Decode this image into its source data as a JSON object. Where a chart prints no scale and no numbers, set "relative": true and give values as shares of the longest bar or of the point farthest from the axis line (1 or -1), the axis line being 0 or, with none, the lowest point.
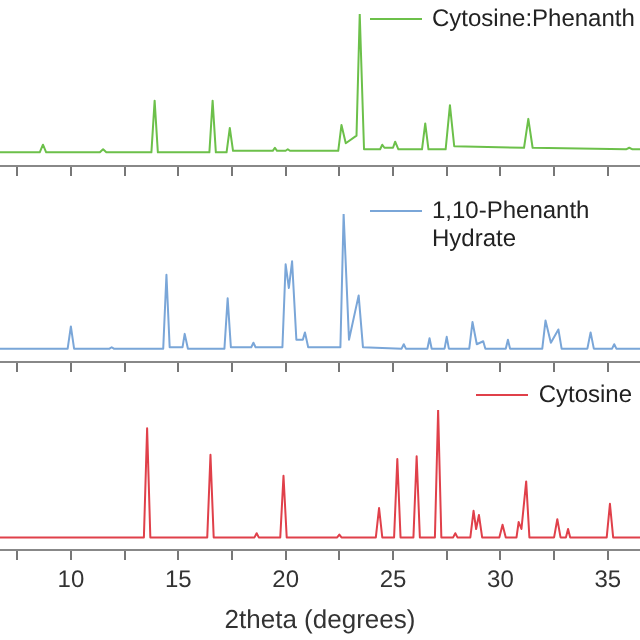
{
  "chart_data": [
    {
      "type": "line",
      "relative": true,
      "tick_labels": false,
      "legend": "top right",
      "grid": false,
      "marker": "none",
      "xlim": [
        6.7,
        36.5
      ],
      "xticks": [
        {
          "value": 7.5,
          "label": null
        },
        {
          "value": 10,
          "label": null
        },
        {
          "value": 12.5,
          "label": null
        },
        {
          "value": 15,
          "label": null
        },
        {
          "value": 17.5,
          "label": null
        },
        {
          "value": 20,
          "label": null
        },
        {
          "value": 22.5,
          "label": null
        },
        {
          "value": 25,
          "label": null
        },
        {
          "value": 27.5,
          "label": null
        },
        {
          "value": 30,
          "label": null
        },
        {
          "value": 32.5,
          "label": null
        },
        {
          "value": 35,
          "label": null
        }
      ],
      "x": [
        6.7,
        8.55,
        8.7,
        8.85,
        11.35,
        11.5,
        11.65,
        13.75,
        13.9,
        14.05,
        16.45,
        16.6,
        16.75,
        17.25,
        17.4,
        17.55,
        19.4,
        19.5,
        19.6,
        20.0,
        20.1,
        20.2,
        22.45,
        22.6,
        22.8,
        23.3,
        23.45,
        23.65,
        24.4,
        24.5,
        24.6,
        25.0,
        25.1,
        25.25,
        26.35,
        26.5,
        26.65,
        27.45,
        27.65,
        27.85,
        31.1,
        31.3,
        31.5,
        35.85,
        36.0,
        36.15,
        36.5
      ],
      "series": [
        {
          "name": "Cytosine:Phenanth",
          "color": "#6cc04a",
          "values": [
            0.09,
            0.09,
            0.14,
            0.09,
            0.09,
            0.11,
            0.09,
            0.09,
            0.43,
            0.09,
            0.09,
            0.43,
            0.09,
            0.09,
            0.25,
            0.1,
            0.1,
            0.12,
            0.1,
            0.1,
            0.11,
            0.1,
            0.1,
            0.27,
            0.15,
            0.2,
            1,
            0.11,
            0.11,
            0.14,
            0.12,
            0.12,
            0.16,
            0.11,
            0.11,
            0.28,
            0.11,
            0.11,
            0.4,
            0.13,
            0.12,
            0.31,
            0.12,
            0.11,
            0.12,
            0.11,
            0.11
          ]
        }
      ]
    },
    {
      "type": "line",
      "relative": true,
      "tick_labels": false,
      "legend": "top right",
      "grid": false,
      "marker": "none",
      "xlim": [
        6.7,
        36.5
      ],
      "xticks": [
        {
          "value": 7.5,
          "label": null
        },
        {
          "value": 10,
          "label": null
        },
        {
          "value": 12.5,
          "label": null
        },
        {
          "value": 15,
          "label": null
        },
        {
          "value": 17.5,
          "label": null
        },
        {
          "value": 20,
          "label": null
        },
        {
          "value": 22.5,
          "label": null
        },
        {
          "value": 25,
          "label": null
        },
        {
          "value": 27.5,
          "label": null
        },
        {
          "value": 30,
          "label": null
        },
        {
          "value": 32.5,
          "label": null
        },
        {
          "value": 35,
          "label": null
        }
      ],
      "x": [
        6.7,
        9.85,
        10.0,
        10.15,
        11.8,
        11.9,
        12.0,
        14.3,
        14.45,
        14.6,
        15.2,
        15.3,
        15.45,
        17.15,
        17.3,
        17.45,
        18.4,
        18.5,
        18.6,
        19.85,
        20.0,
        20.15,
        20.3,
        20.5,
        20.8,
        20.9,
        21.05,
        22.55,
        22.7,
        22.95,
        23.4,
        23.6,
        25.4,
        25.5,
        25.6,
        26.6,
        26.7,
        26.8,
        27.4,
        27.5,
        27.6,
        28.55,
        28.7,
        28.9,
        29.2,
        29.3,
        30.25,
        30.35,
        30.45,
        31.95,
        32.1,
        32.35,
        32.7,
        32.85,
        34.05,
        34.2,
        34.35,
        35.2,
        35.3,
        35.4,
        36.5
      ],
      "series": [
        {
          "name": "1,10-Phenanth Hydrate",
          "color": "#7aa6d8",
          "values": [
            0.09,
            0.09,
            0.24,
            0.09,
            0.09,
            0.1,
            0.09,
            0.09,
            0.59,
            0.1,
            0.1,
            0.19,
            0.09,
            0.09,
            0.43,
            0.1,
            0.1,
            0.13,
            0.1,
            0.1,
            0.66,
            0.5,
            0.68,
            0.15,
            0.15,
            0.2,
            0.1,
            0.1,
            1,
            0.15,
            0.45,
            0.1,
            0.09,
            0.12,
            0.09,
            0.09,
            0.16,
            0.09,
            0.09,
            0.17,
            0.09,
            0.09,
            0.27,
            0.12,
            0.14,
            0.09,
            0.09,
            0.15,
            0.09,
            0.09,
            0.28,
            0.13,
            0.22,
            0.09,
            0.09,
            0.2,
            0.09,
            0.09,
            0.12,
            0.09,
            0.09
          ]
        }
      ]
    },
    {
      "type": "line",
      "relative": true,
      "tick_labels": "x",
      "legend": "top right",
      "grid": false,
      "marker": "none",
      "xlabel": "2theta (degrees)",
      "xlim": [
        6.7,
        36.5
      ],
      "xticks": [
        {
          "value": 7.5,
          "label": null
        },
        10,
        {
          "value": 12.5,
          "label": null
        },
        15,
        {
          "value": 17.5,
          "label": null
        },
        20,
        {
          "value": 22.5,
          "label": null
        },
        25,
        {
          "value": 27.5,
          "label": null
        },
        30,
        {
          "value": 32.5,
          "label": null
        },
        35
      ],
      "x": [
        6.7,
        13.4,
        13.55,
        13.7,
        16.35,
        16.5,
        16.65,
        18.55,
        18.65,
        18.75,
        19.75,
        19.9,
        20.05,
        22.4,
        22.5,
        22.6,
        24.2,
        24.35,
        24.5,
        25.05,
        25.2,
        25.35,
        25.95,
        26.1,
        26.25,
        26.95,
        27.1,
        27.25,
        27.8,
        27.9,
        28.0,
        28.6,
        28.75,
        28.87,
        29.0,
        29.15,
        29.95,
        30.1,
        30.25,
        30.75,
        30.85,
        30.98,
        31.2,
        31.35,
        32.5,
        32.65,
        32.8,
        33.05,
        33.15,
        33.25,
        34.95,
        35.1,
        35.25,
        36.5
      ],
      "series": [
        {
          "name": "Cytosine",
          "color": "#e0404a",
          "values": [
            0.09,
            0.09,
            0.87,
            0.09,
            0.09,
            0.68,
            0.09,
            0.09,
            0.12,
            0.09,
            0.09,
            0.53,
            0.09,
            0.09,
            0.11,
            0.09,
            0.09,
            0.3,
            0.09,
            0.09,
            0.65,
            0.09,
            0.09,
            0.67,
            0.09,
            0.09,
            1,
            0.09,
            0.09,
            0.12,
            0.09,
            0.09,
            0.28,
            0.15,
            0.25,
            0.09,
            0.09,
            0.18,
            0.09,
            0.09,
            0.2,
            0.15,
            0.49,
            0.09,
            0.09,
            0.22,
            0.09,
            0.09,
            0.15,
            0.09,
            0.09,
            0.33,
            0.09,
            0.09
          ]
        }
      ]
    }
  ]
}
